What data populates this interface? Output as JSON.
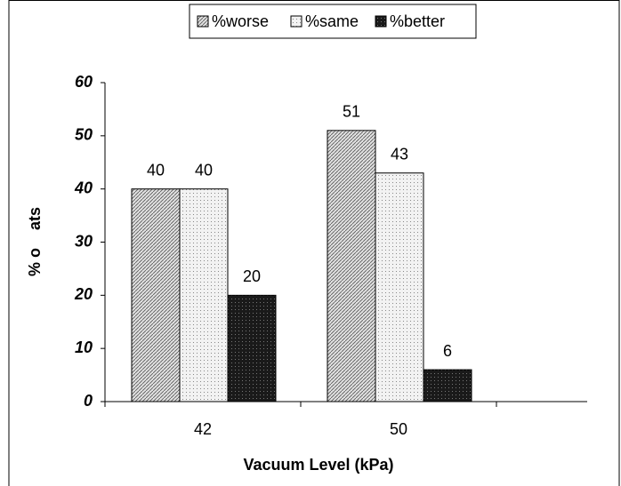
{
  "chart_data": {
    "type": "bar",
    "x_label": "Vacuum Level (kPa)",
    "y_label": "% o    ats",
    "categories": [
      "42",
      "50"
    ],
    "series": [
      {
        "name": "%worse",
        "color": "#e0e0e0",
        "values": [
          40,
          51
        ]
      },
      {
        "name": "%same",
        "color": "#f2f2f2",
        "values": [
          40,
          43
        ]
      },
      {
        "name": "%better",
        "color": "#1a1a1a",
        "values": [
          20,
          6
        ]
      }
    ],
    "ylim": [
      0,
      60
    ],
    "yticks": [
      0,
      10,
      20,
      30,
      40,
      50,
      60
    ]
  }
}
